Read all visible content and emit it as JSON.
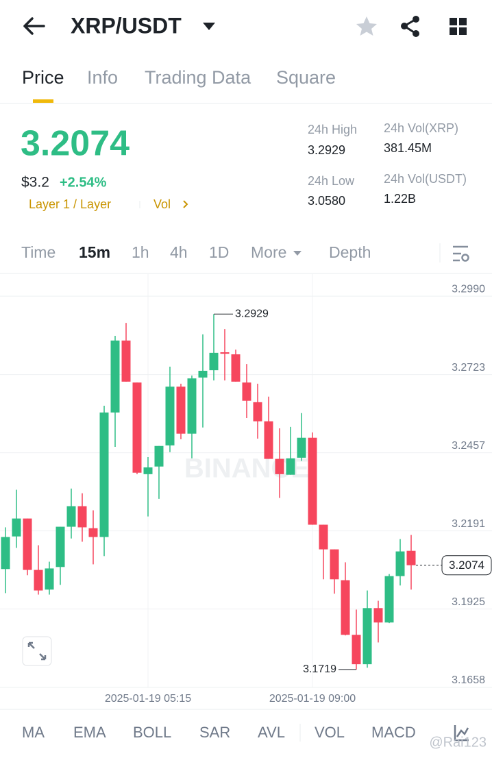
{
  "header": {
    "pair": "XRP/USDT"
  },
  "tabs": [
    "Price",
    "Info",
    "Trading Data",
    "Square"
  ],
  "ticker": {
    "price": "3.2074",
    "usd_price": "$3.2",
    "change": "+2.54%",
    "tags": "Layer 1 / Layer",
    "vol_link": "Vol",
    "stats": [
      {
        "label": "24h High",
        "value": "3.2929"
      },
      {
        "label": "24h Low",
        "value": "3.0580"
      },
      {
        "label": "24h Vol(XRP)",
        "value": "381.45M"
      },
      {
        "label": "24h Vol(USDT)",
        "value": "1.22B"
      }
    ]
  },
  "intervals": [
    "Time",
    "15m",
    "1h",
    "4h",
    "1D",
    "More",
    "Depth"
  ],
  "indicators": [
    "MA",
    "EMA",
    "BOLL",
    "SAR",
    "AVL",
    "VOL",
    "MACD"
  ],
  "chart_data": {
    "type": "candlestick",
    "categories": [
      null,
      null,
      null,
      null,
      null,
      null,
      null,
      null,
      null,
      null,
      null,
      null,
      null,
      "2025-01-19 05:15",
      null,
      null,
      null,
      null,
      null,
      null,
      null,
      null,
      null,
      null,
      null,
      null,
      null,
      null,
      "2025-01-19 09:00",
      null,
      null,
      null,
      null,
      null,
      null,
      null,
      null,
      null
    ],
    "open": [
      3.2061,
      3.2172,
      3.2233,
      3.2058,
      3.1991,
      3.2068,
      3.2205,
      3.2275,
      3.22,
      3.217,
      3.2594,
      3.2839,
      3.2696,
      3.2384,
      3.241,
      3.2482,
      3.2682,
      3.2522,
      3.2713,
      3.2738,
      3.2799,
      3.2792,
      3.2696,
      3.2629,
      3.2564,
      3.2436,
      3.2382,
      3.244,
      3.2508,
      3.2212,
      3.2128,
      3.2023,
      3.1837,
      3.1737,
      3.1928,
      3.1879,
      3.2037,
      3.2123
    ],
    "high": [
      3.2203,
      3.2331,
      3.2233,
      3.2142,
      3.2086,
      3.2205,
      3.2335,
      3.2319,
      3.2261,
      3.2617,
      3.2855,
      3.2899,
      3.2696,
      3.2442,
      3.248,
      3.275,
      3.2692,
      3.272,
      3.286,
      3.2929,
      3.2878,
      3.2808,
      3.2759,
      3.2692,
      3.2648,
      3.254,
      3.2545,
      3.2592,
      3.2526,
      3.2212,
      3.2128,
      3.2084,
      3.1923,
      3.1988,
      3.1953,
      3.2044,
      3.2163,
      3.2177
    ],
    "low": [
      3.1979,
      3.2133,
      3.204,
      3.1974,
      3.1974,
      3.2007,
      3.2165,
      3.2154,
      3.2077,
      3.2105,
      3.2477,
      3.2699,
      3.2384,
      3.224,
      3.23,
      3.2459,
      3.2503,
      3.2438,
      3.2543,
      3.2703,
      3.2703,
      3.2699,
      3.2575,
      3.2505,
      3.2436,
      3.2303,
      3.2382,
      3.2429,
      3.2212,
      3.2026,
      3.1977,
      3.1835,
      3.1719,
      3.1725,
      3.1811,
      3.1877,
      3.2005,
      3.1991
    ],
    "close": [
      3.217,
      3.2233,
      3.2058,
      3.1988,
      3.2063,
      3.2205,
      3.2275,
      3.2203,
      3.217,
      3.2594,
      3.2839,
      3.2699,
      3.2389,
      3.2407,
      3.248,
      3.2682,
      3.2522,
      3.271,
      3.2736,
      3.2797,
      3.2794,
      3.2699,
      3.2634,
      3.2564,
      3.2436,
      3.2384,
      3.2438,
      3.2508,
      3.2212,
      3.2128,
      3.2026,
      3.1837,
      3.1737,
      3.1928,
      3.1879,
      3.2037,
      3.2121,
      3.2074
    ],
    "up_color": "#2ebd85",
    "down_color": "#f6465d",
    "ylim": [
      3.1658,
      3.3065
    ],
    "yticks": [
      {
        "value": 3.299,
        "label": "3.2990"
      },
      3.2723,
      3.2457,
      3.2191,
      3.1925,
      3.1658
    ],
    "watermark": "BINANCE"
  },
  "watermark": "@Rai123"
}
